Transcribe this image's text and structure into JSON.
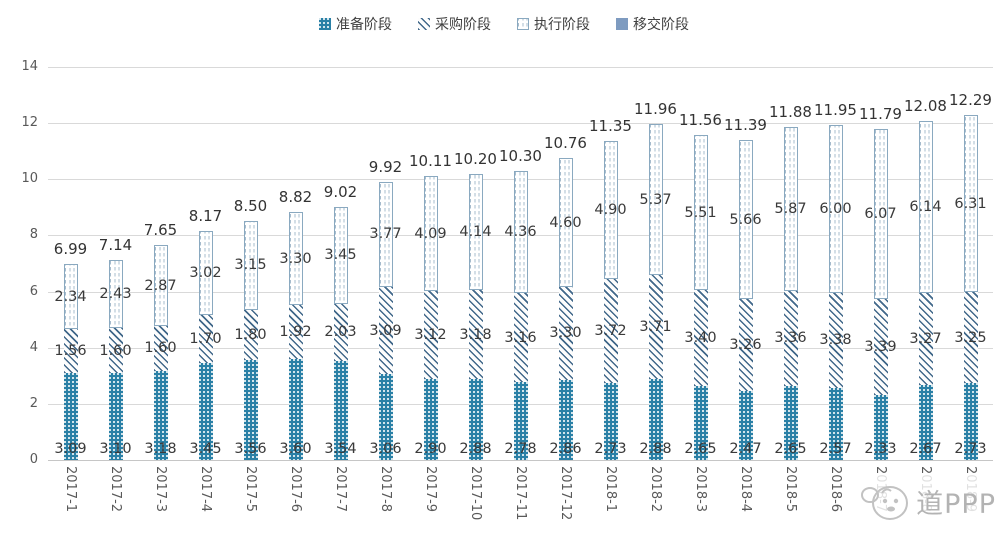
{
  "legend": {
    "items": [
      {
        "label": "准备阶段",
        "pattern": "dots"
      },
      {
        "label": "采购阶段",
        "pattern": "hatch"
      },
      {
        "label": "执行阶段",
        "pattern": "dashes"
      },
      {
        "label": "移交阶段",
        "pattern": "solid"
      }
    ]
  },
  "y_axis": {
    "ticks": [
      0,
      2,
      4,
      6,
      8,
      10,
      12,
      14
    ]
  },
  "watermark": {
    "text": "道PPP",
    "face_icon": "cartoon-panda-face"
  },
  "colors": {
    "prep_teal": "#2a80a6",
    "hatch_line": "#41688a",
    "dash_line": "#a7bccd",
    "dash_border": "#8aa9c0",
    "handover_solid": "#7e9bc0",
    "gridline": "#d9d9d9",
    "axis_text": "#595959",
    "label_text": "#3a3a3a",
    "watermark_gray": "#b3b3b3"
  },
  "chart_data": {
    "type": "bar",
    "stacked": true,
    "title": "",
    "xlabel": "",
    "ylabel": "",
    "ylim": [
      0,
      14
    ],
    "grid": true,
    "legend_position": "top",
    "categories": [
      "2017-1",
      "2017-2",
      "2017-3",
      "2017-4",
      "2017-5",
      "2017-6",
      "2017-7",
      "2017-8",
      "2017-9",
      "2017-10",
      "2017-11",
      "2017-12",
      "2018-1",
      "2018-2",
      "2018-3",
      "2018-4",
      "2018-5",
      "2018-6",
      "2018-7",
      "2018-8",
      "2018-9"
    ],
    "series": [
      {
        "name": "准备阶段",
        "pattern": "dots",
        "values": [
          3.09,
          3.1,
          3.18,
          3.45,
          3.56,
          3.6,
          3.54,
          3.06,
          2.9,
          2.88,
          2.78,
          2.86,
          2.73,
          2.88,
          2.65,
          2.47,
          2.65,
          2.57,
          2.33,
          2.67,
          2.73
        ]
      },
      {
        "name": "采购阶段",
        "pattern": "hatch",
        "values": [
          1.56,
          1.6,
          1.6,
          1.7,
          1.8,
          1.92,
          2.03,
          3.09,
          3.12,
          3.18,
          3.16,
          3.3,
          3.72,
          3.71,
          3.4,
          3.26,
          3.36,
          3.38,
          3.39,
          3.27,
          3.25
        ]
      },
      {
        "name": "执行阶段",
        "pattern": "dashes",
        "values": [
          2.34,
          2.43,
          2.87,
          3.02,
          3.15,
          3.3,
          3.45,
          3.77,
          4.09,
          4.14,
          4.36,
          4.6,
          4.9,
          5.37,
          5.51,
          5.66,
          5.87,
          6.0,
          6.07,
          6.14,
          6.31
        ]
      },
      {
        "name": "移交阶段",
        "pattern": "solid",
        "values": [
          0,
          0,
          0,
          0,
          0,
          0,
          0,
          0,
          0,
          0,
          0,
          0,
          0,
          0,
          0,
          0,
          0,
          0,
          0,
          0,
          0
        ]
      }
    ],
    "totals": [
      6.99,
      7.14,
      7.65,
      8.17,
      8.5,
      8.82,
      9.02,
      9.92,
      10.11,
      10.2,
      10.3,
      10.76,
      11.35,
      11.96,
      11.56,
      11.39,
      11.88,
      11.95,
      11.79,
      12.08,
      12.29
    ]
  }
}
